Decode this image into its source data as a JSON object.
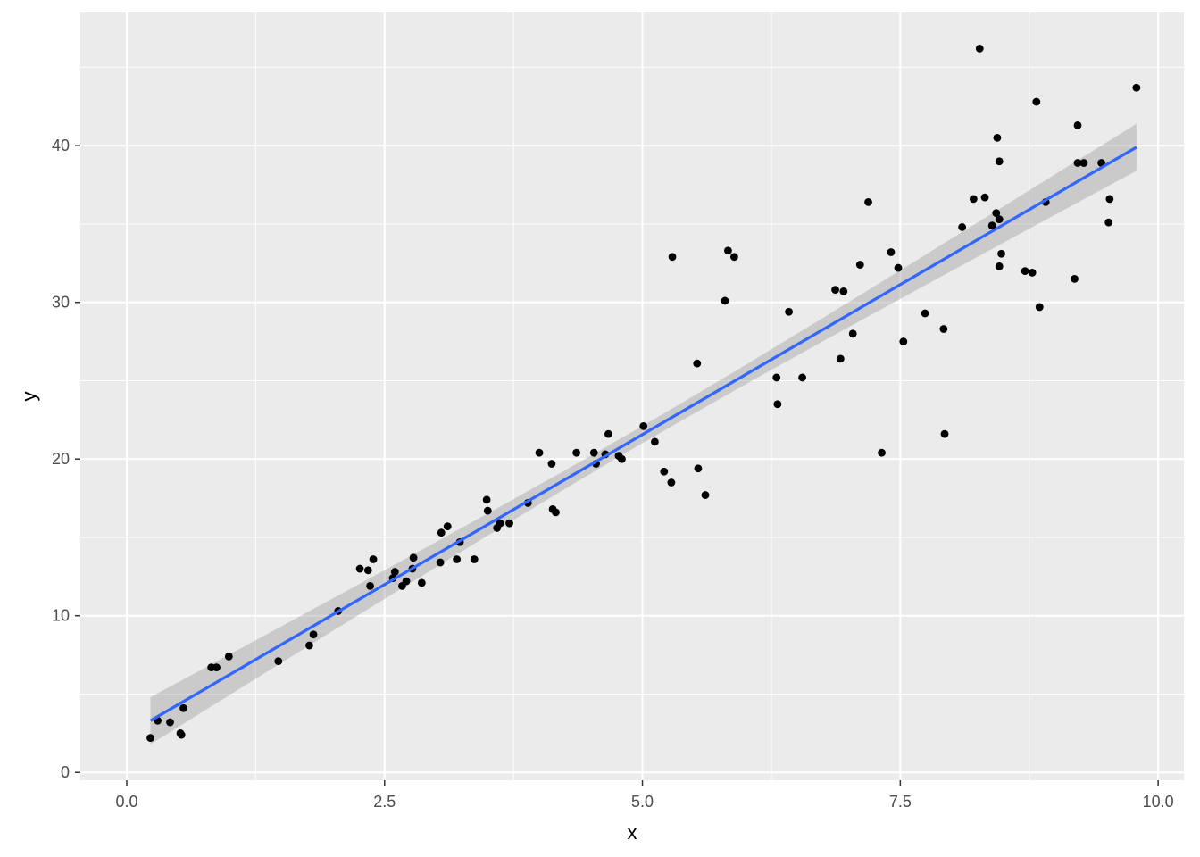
{
  "chart_data": {
    "type": "scatter",
    "title": "",
    "xlabel": "x",
    "ylabel": "y",
    "xlim": [
      -0.45,
      10.25
    ],
    "ylim": [
      -0.5,
      48.5
    ],
    "x_ticks": [
      0.0,
      2.5,
      5.0,
      7.5,
      10.0
    ],
    "x_tick_labels": [
      "0.0",
      "2.5",
      "5.0",
      "7.5",
      "10.0"
    ],
    "y_ticks": [
      0,
      10,
      20,
      30,
      40
    ],
    "y_tick_labels": [
      "0",
      "10",
      "20",
      "30",
      "40"
    ],
    "grid": true,
    "legend": "none",
    "colors": {
      "panel": "#ebebeb",
      "grid": "#ffffff",
      "points": "#000000",
      "fit_line": "#3366ff",
      "ribbon": "#999999"
    },
    "points": [
      [
        0.23,
        2.2
      ],
      [
        0.3,
        3.3
      ],
      [
        0.42,
        3.2
      ],
      [
        0.52,
        2.5
      ],
      [
        0.53,
        2.4
      ],
      [
        0.55,
        4.1
      ],
      [
        0.82,
        6.7
      ],
      [
        0.87,
        6.7
      ],
      [
        0.99,
        7.4
      ],
      [
        1.47,
        7.1
      ],
      [
        1.77,
        8.1
      ],
      [
        1.81,
        8.8
      ],
      [
        2.05,
        10.3
      ],
      [
        2.26,
        13.0
      ],
      [
        2.34,
        12.9
      ],
      [
        2.36,
        11.9
      ],
      [
        2.39,
        13.6
      ],
      [
        2.58,
        12.4
      ],
      [
        2.6,
        12.8
      ],
      [
        2.67,
        11.9
      ],
      [
        2.71,
        12.2
      ],
      [
        2.77,
        13.0
      ],
      [
        2.78,
        13.7
      ],
      [
        2.86,
        12.1
      ],
      [
        3.04,
        13.4
      ],
      [
        3.05,
        15.3
      ],
      [
        3.11,
        15.7
      ],
      [
        3.2,
        13.6
      ],
      [
        3.23,
        14.7
      ],
      [
        3.37,
        13.6
      ],
      [
        3.49,
        17.4
      ],
      [
        3.5,
        16.7
      ],
      [
        3.59,
        15.6
      ],
      [
        3.62,
        15.9
      ],
      [
        3.71,
        15.9
      ],
      [
        3.89,
        17.2
      ],
      [
        4.0,
        20.4
      ],
      [
        4.12,
        19.7
      ],
      [
        4.13,
        16.8
      ],
      [
        4.16,
        16.6
      ],
      [
        4.36,
        20.4
      ],
      [
        4.53,
        20.4
      ],
      [
        4.55,
        19.7
      ],
      [
        4.64,
        20.3
      ],
      [
        4.67,
        21.6
      ],
      [
        4.77,
        20.2
      ],
      [
        4.8,
        20.0
      ],
      [
        5.01,
        22.1
      ],
      [
        5.12,
        21.1
      ],
      [
        5.21,
        19.2
      ],
      [
        5.28,
        18.5
      ],
      [
        5.29,
        32.9
      ],
      [
        5.53,
        26.1
      ],
      [
        5.54,
        19.4
      ],
      [
        5.61,
        17.7
      ],
      [
        5.8,
        30.1
      ],
      [
        5.83,
        33.3
      ],
      [
        5.89,
        32.9
      ],
      [
        6.3,
        25.2
      ],
      [
        6.31,
        23.5
      ],
      [
        6.42,
        29.4
      ],
      [
        6.55,
        25.2
      ],
      [
        6.87,
        30.8
      ],
      [
        6.92,
        26.4
      ],
      [
        6.95,
        30.7
      ],
      [
        7.04,
        28.0
      ],
      [
        7.11,
        32.4
      ],
      [
        7.19,
        36.4
      ],
      [
        7.32,
        20.4
      ],
      [
        7.41,
        33.2
      ],
      [
        7.48,
        32.2
      ],
      [
        7.53,
        27.5
      ],
      [
        7.74,
        29.3
      ],
      [
        7.92,
        28.3
      ],
      [
        7.93,
        21.6
      ],
      [
        8.1,
        34.8
      ],
      [
        8.21,
        36.6
      ],
      [
        8.27,
        46.2
      ],
      [
        8.32,
        36.7
      ],
      [
        8.39,
        34.9
      ],
      [
        8.43,
        35.7
      ],
      [
        8.44,
        40.5
      ],
      [
        8.46,
        39.0
      ],
      [
        8.46,
        35.3
      ],
      [
        8.46,
        32.3
      ],
      [
        8.48,
        33.1
      ],
      [
        8.71,
        32.0
      ],
      [
        8.78,
        31.9
      ],
      [
        8.82,
        42.8
      ],
      [
        8.85,
        29.7
      ],
      [
        8.91,
        36.4
      ],
      [
        9.19,
        31.5
      ],
      [
        9.22,
        41.3
      ],
      [
        9.22,
        38.9
      ],
      [
        9.28,
        38.9
      ],
      [
        9.45,
        38.9
      ],
      [
        9.52,
        35.1
      ],
      [
        9.53,
        36.6
      ],
      [
        9.79,
        43.7
      ]
    ],
    "fit_line": {
      "method": "lm",
      "x_start": 0.23,
      "y_start": 3.3,
      "x_end": 9.79,
      "y_end": 39.9,
      "ci_halfwidth_ends": 1.5,
      "ci_halfwidth_center": 0.55
    }
  }
}
